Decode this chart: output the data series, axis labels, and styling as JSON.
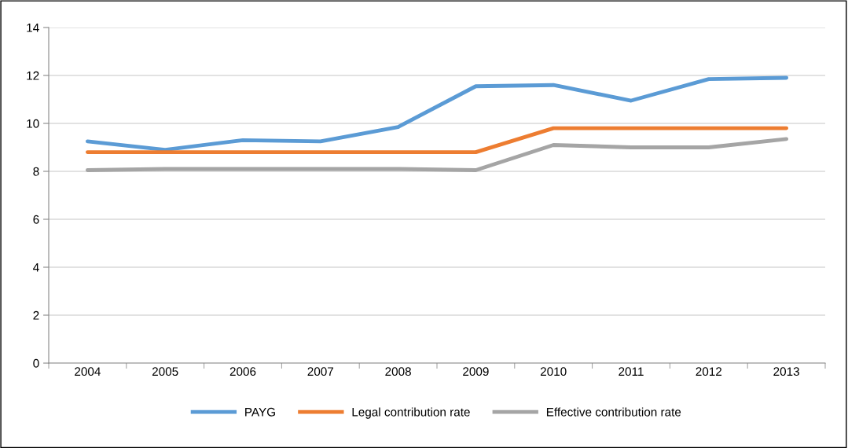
{
  "chart_data": {
    "type": "line",
    "categories": [
      "2004",
      "2005",
      "2006",
      "2007",
      "2008",
      "2009",
      "2010",
      "2011",
      "2012",
      "2013"
    ],
    "series": [
      {
        "name": "PAYG",
        "color": "#5b9bd5",
        "values": [
          9.25,
          8.9,
          9.3,
          9.25,
          9.85,
          11.55,
          11.6,
          10.95,
          11.85,
          11.9
        ]
      },
      {
        "name": "Legal contribution rate",
        "color": "#ed7d31",
        "values": [
          8.8,
          8.8,
          8.8,
          8.8,
          8.8,
          8.8,
          9.8,
          9.8,
          9.8,
          9.8
        ]
      },
      {
        "name": "Effective contribution rate",
        "color": "#a5a5a5",
        "values": [
          8.05,
          8.1,
          8.1,
          8.1,
          8.1,
          8.05,
          9.1,
          9.0,
          9.0,
          9.35
        ]
      }
    ],
    "ylim": [
      0,
      14
    ],
    "yticks": [
      0,
      2,
      4,
      6,
      8,
      10,
      12,
      14
    ],
    "grid": "y",
    "legend": "bottom",
    "marker": "none",
    "line_style": "solid"
  }
}
